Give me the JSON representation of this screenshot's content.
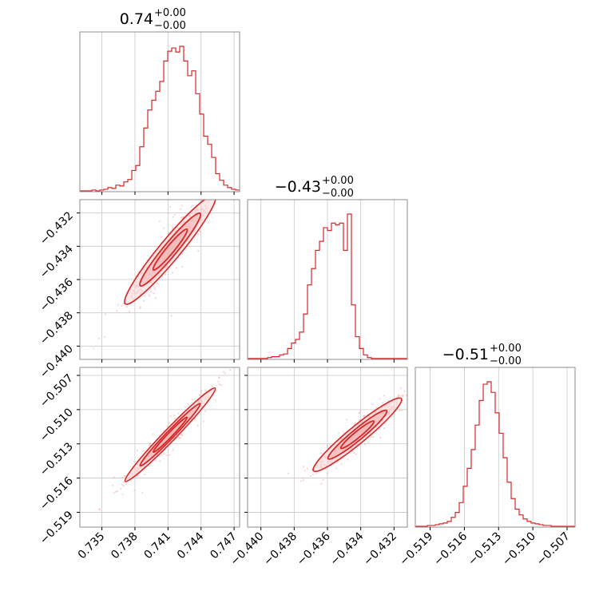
{
  "colors": {
    "accent": "#d62728",
    "scatter": "#f2a0a0",
    "fill_inner": "#f4b8b8",
    "fill_mid": "#f9d6d6"
  },
  "chart_data": [
    {
      "id": "p0",
      "type": "histogram",
      "row": 0,
      "col": 0,
      "title": {
        "main": "0.74",
        "sup": "+0.00",
        "sub": "−0.00"
      },
      "xlim": [
        0.733,
        0.7475
      ],
      "xticks": [
        0.735,
        0.738,
        0.741,
        0.744,
        0.747
      ],
      "xticklabels": [],
      "bins": {
        "start": 0.733,
        "step": 0.0003625,
        "counts": [
          1,
          1,
          1,
          2,
          1,
          2,
          3,
          5,
          4,
          8,
          7,
          12,
          15,
          26,
          32,
          55,
          78,
          100,
          112,
          123,
          135,
          160,
          172,
          176,
          171,
          178,
          160,
          142,
          148,
          120,
          95,
          68,
          58,
          42,
          22,
          14,
          8,
          5,
          3,
          2
        ]
      }
    },
    {
      "id": "p1",
      "type": "scatter_contour",
      "row": 1,
      "col": 0,
      "xlim": [
        0.733,
        0.7475
      ],
      "ylim": [
        -0.4408,
        -0.4312
      ],
      "xticks": [
        0.735,
        0.738,
        0.741,
        0.744,
        0.747
      ],
      "xticklabels": [],
      "yticks": [
        -0.432,
        -0.434,
        -0.436,
        -0.438,
        -0.44
      ],
      "yticklabels": [
        "−0.432",
        "−0.434",
        "−0.436",
        "−0.438",
        "−0.440"
      ],
      "relation": {
        "x_center": 0.7412,
        "y_center": -0.4342,
        "slope": 0.8,
        "x_sd": 0.0017,
        "y_sd": 0.00045
      }
    },
    {
      "id": "p2",
      "type": "histogram",
      "row": 1,
      "col": 1,
      "title": {
        "main": "−0.43",
        "sup": "+0.00",
        "sub": "−0.00"
      },
      "xlim": [
        -0.4408,
        -0.4312
      ],
      "xticks": [
        -0.44,
        -0.438,
        -0.436,
        -0.434,
        -0.432
      ],
      "xticklabels": [],
      "bins": {
        "start": -0.4408,
        "step": 0.00024,
        "counts": [
          1,
          1,
          1,
          1,
          1,
          2,
          3,
          3,
          5,
          6,
          12,
          18,
          22,
          30,
          50,
          82,
          100,
          120,
          130,
          145,
          142,
          150,
          148,
          150,
          120,
          160,
          60,
          25,
          12,
          5,
          2,
          1,
          1,
          1,
          1,
          1,
          1,
          1,
          1,
          1
        ]
      }
    },
    {
      "id": "p3",
      "type": "scatter_contour",
      "row": 2,
      "col": 0,
      "xlim": [
        0.733,
        0.7475
      ],
      "ylim": [
        -0.5203,
        -0.5063
      ],
      "xticks": [
        0.735,
        0.738,
        0.741,
        0.744,
        0.747
      ],
      "xticklabels": [
        "0.735",
        "0.738",
        "0.741",
        "0.744",
        "0.747"
      ],
      "yticks": [
        -0.507,
        -0.51,
        -0.513,
        -0.516,
        -0.519
      ],
      "yticklabels": [
        "−0.507",
        "−0.510",
        "−0.513",
        "−0.516",
        "−0.519"
      ],
      "relation": {
        "x_center": 0.7412,
        "y_center": -0.5122,
        "slope": 1.0,
        "x_sd": 0.0017,
        "y_sd": 0.00035
      }
    },
    {
      "id": "p4",
      "type": "scatter_contour",
      "row": 2,
      "col": 1,
      "xlim": [
        -0.4408,
        -0.4312
      ],
      "ylim": [
        -0.5203,
        -0.5063
      ],
      "xticks": [
        -0.44,
        -0.438,
        -0.436,
        -0.434,
        -0.432
      ],
      "xticklabels": [
        "−0.440",
        "−0.438",
        "−0.436",
        "−0.434",
        "−0.432"
      ],
      "yticks": [
        -0.507,
        -0.51,
        -0.513,
        -0.516,
        -0.519
      ],
      "yticklabels": [],
      "relation": {
        "x_center": -0.4342,
        "y_center": -0.5122,
        "slope": 1.2,
        "x_sd": 0.0011,
        "y_sd": 0.00045
      }
    },
    {
      "id": "p5",
      "type": "histogram",
      "row": 2,
      "col": 2,
      "title": {
        "main": "−0.51",
        "sup": "+0.00",
        "sub": "−0.00"
      },
      "xlim": [
        -0.5203,
        -0.5063
      ],
      "xticks": [
        -0.519,
        -0.516,
        -0.513,
        -0.51,
        -0.507
      ],
      "xticklabels": [
        "−0.519",
        "−0.516",
        "−0.513",
        "−0.510",
        "−0.507"
      ],
      "bins": {
        "start": -0.5203,
        "step": 0.00035,
        "counts": [
          1,
          1,
          1,
          2,
          2,
          3,
          4,
          5,
          7,
          12,
          18,
          30,
          50,
          72,
          95,
          125,
          155,
          175,
          178,
          165,
          140,
          115,
          85,
          55,
          35,
          22,
          15,
          10,
          7,
          5,
          4,
          3,
          2,
          2,
          1,
          1,
          1,
          1,
          1,
          1
        ]
      }
    }
  ]
}
